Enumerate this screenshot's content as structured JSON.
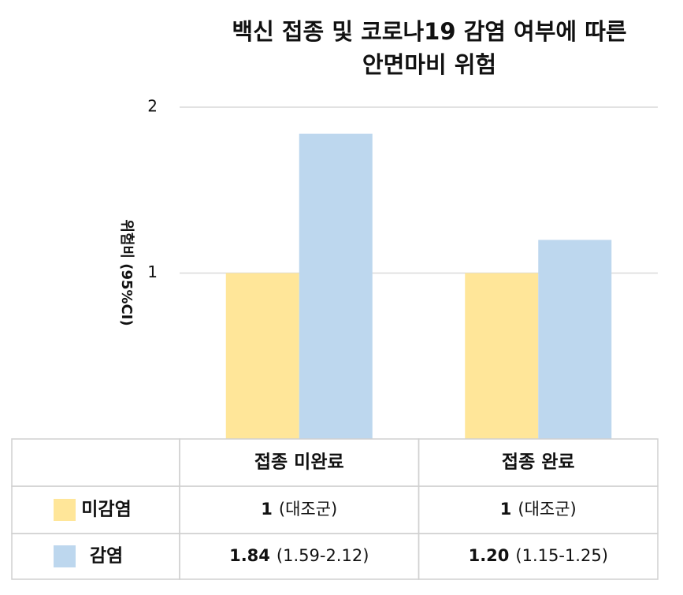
{
  "chart_data": {
    "type": "bar",
    "title": [
      "백신 접종 및 코로나19 감염 여부에 따른",
      "안면마비 위험"
    ],
    "y_label": "위험비 (95%CI)",
    "categories": [
      "접종 미완료",
      "접종 완료"
    ],
    "series": [
      {
        "name": "미감염",
        "color": "#ffe699",
        "values": [
          1,
          1
        ],
        "value_labels": [
          "1",
          "1"
        ],
        "ci_labels": [
          "(대조군)",
          "(대조군)"
        ]
      },
      {
        "name": "감염",
        "color": "#bdd7ee",
        "values": [
          1.84,
          1.2
        ],
        "value_labels": [
          "1.84",
          "1.20"
        ],
        "ci_labels": [
          "(1.59-2.12)",
          "(1.15-1.25)"
        ]
      }
    ],
    "ylim": [
      0,
      2
    ],
    "yticks": [
      1,
      2
    ],
    "grid": true
  }
}
